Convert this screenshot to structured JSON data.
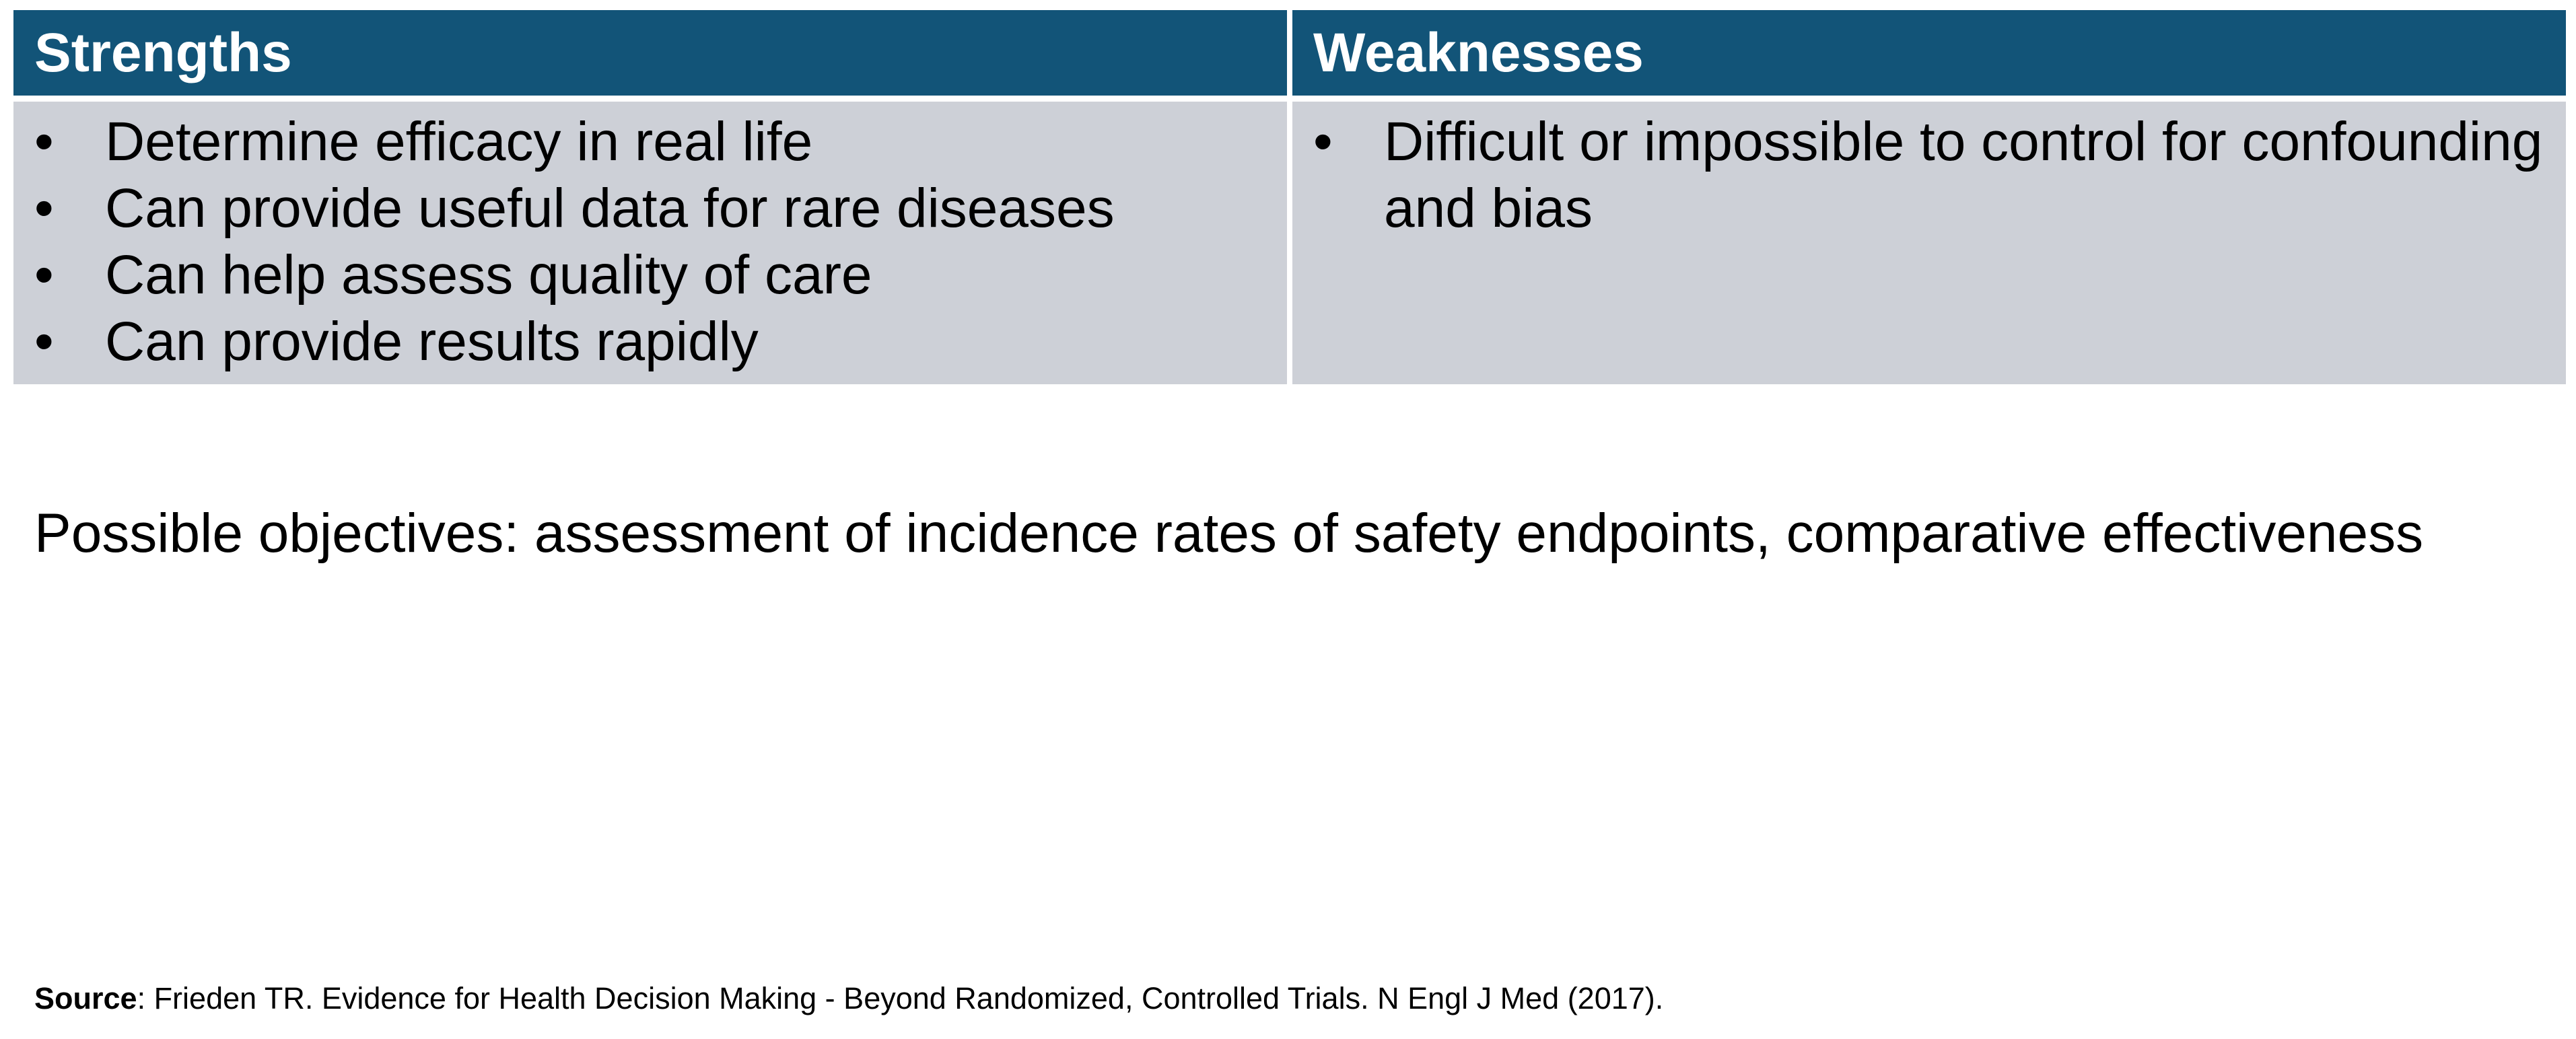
{
  "colors": {
    "header_bg": "#125478",
    "header_text": "#ffffff",
    "body_bg": "#cdd0d7"
  },
  "strengths": {
    "title": "Strengths",
    "items": [
      "Determine efficacy in real life",
      "Can provide useful data for rare diseases",
      "Can help assess quality of care",
      "Can provide results rapidly"
    ]
  },
  "weaknesses": {
    "title": "Weaknesses",
    "items": [
      "Difficult or impossible to control for confounding and bias"
    ]
  },
  "bullet_glyph": "•",
  "objectives": "Possible objectives: assessment of incidence rates of safety endpoints, comparative effectiveness",
  "source": {
    "label": "Source",
    "text": ": Frieden TR. Evidence for Health Decision Making - Beyond Randomized, Controlled Trials. N Engl J Med (2017)."
  }
}
